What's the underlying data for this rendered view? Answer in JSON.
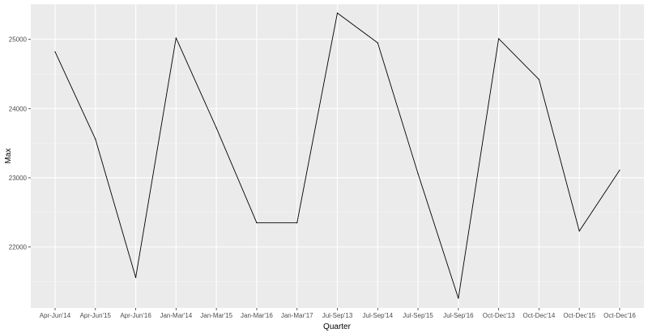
{
  "chart_data": {
    "type": "line",
    "xlabel": "Quarter",
    "ylabel": "Max",
    "categories": [
      "Apr-Jun'14",
      "Apr-Jun'15",
      "Apr-Jun'16",
      "Jan-Mar'14",
      "Jan-Mar'15",
      "Jan-Mar'16",
      "Jan-Mar'17",
      "Jul-Sep'13",
      "Jul-Sep'14",
      "Jul-Sep'15",
      "Jul-Sep'16",
      "Oct-Dec'13",
      "Oct-Dec'14",
      "Oct-Dec'15",
      "Oct-Dec'16"
    ],
    "series": [
      {
        "values": [
          24820,
          23560,
          21560,
          25020,
          23720,
          22350,
          22350,
          25380,
          24950,
          23060,
          21260,
          25010,
          24420,
          22230,
          23110
        ]
      }
    ],
    "y_ticks": [
      22000,
      23000,
      24000,
      25000
    ],
    "ylim": [
      21120,
      25510
    ],
    "grid": true,
    "legend": "none",
    "colors": {
      "panel": "#ebebeb",
      "grid_major": "#ffffff",
      "line": "#000000"
    }
  }
}
